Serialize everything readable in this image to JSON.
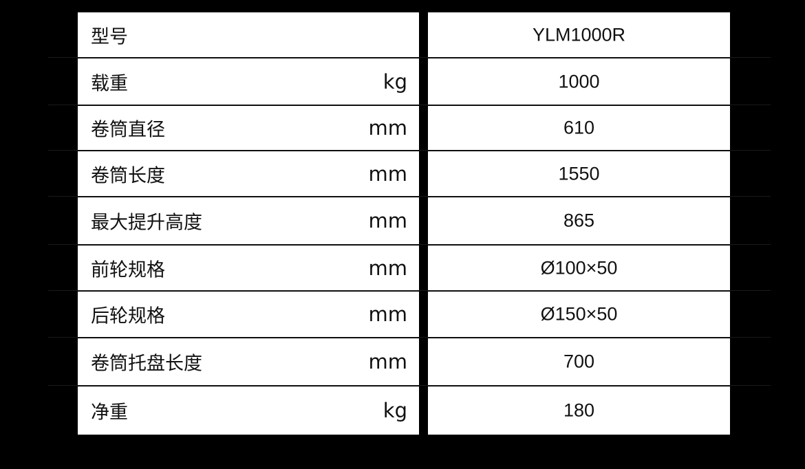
{
  "rows": [
    {
      "label": "型号",
      "unit": "",
      "value": "YLM1000R"
    },
    {
      "label": "载重",
      "unit": "kg",
      "value": "1000"
    },
    {
      "label": "卷筒直径",
      "unit": "mm",
      "value": "610"
    },
    {
      "label": "卷筒长度",
      "unit": "mm",
      "value": "1550"
    },
    {
      "label": "最大提升高度",
      "unit": "mm",
      "value": "865"
    },
    {
      "label": "前轮规格",
      "unit": "mm",
      "value": "Ø100×50"
    },
    {
      "label": "后轮规格",
      "unit": "mm",
      "value": "Ø150×50"
    },
    {
      "label": "卷筒托盘长度",
      "unit": "mm",
      "value": "700"
    },
    {
      "label": "净重",
      "unit": "kg",
      "value": "180"
    }
  ]
}
